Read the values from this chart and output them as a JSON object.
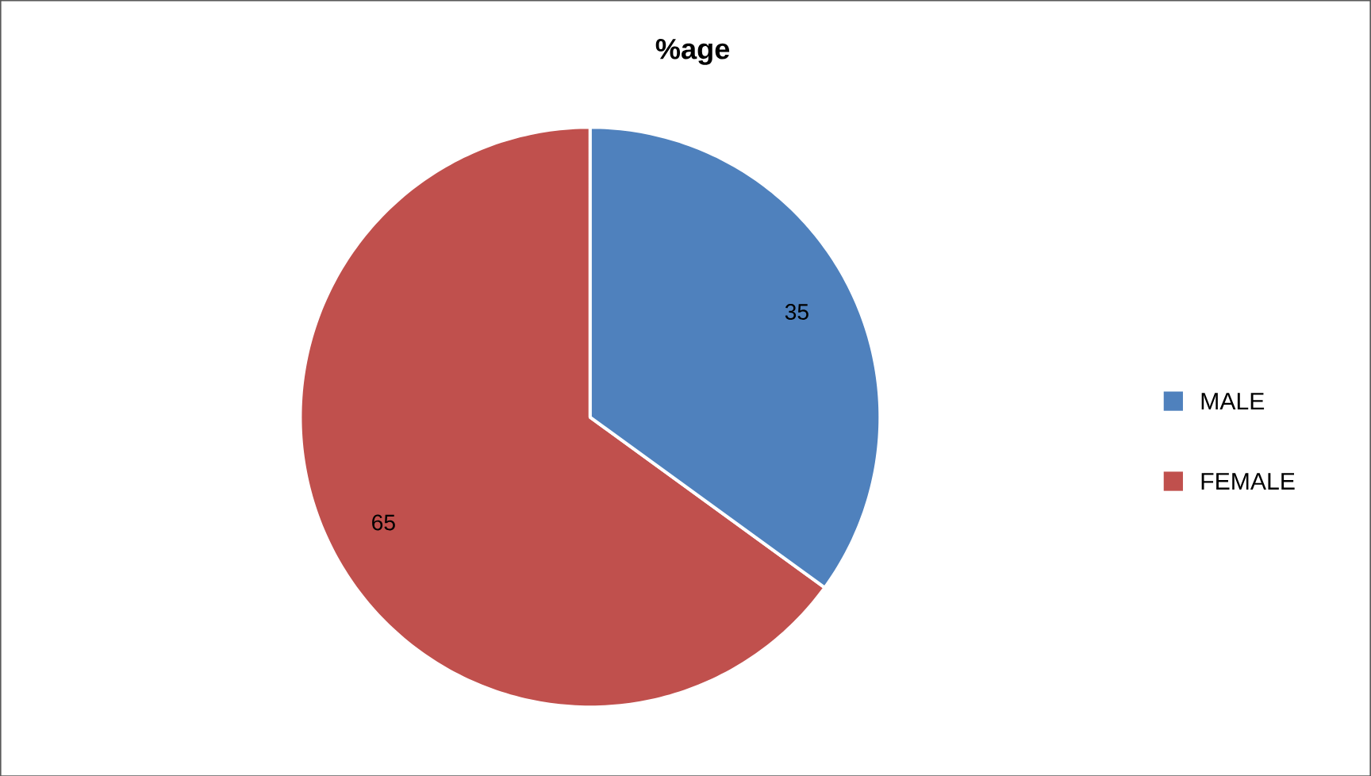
{
  "chart_data": {
    "type": "pie",
    "title": "%age",
    "categories": [
      "MALE",
      "FEMALE"
    ],
    "values": [
      35,
      65
    ],
    "colors": [
      "#4f81bd",
      "#c0504d"
    ],
    "data_labels": true,
    "legend": "right"
  }
}
